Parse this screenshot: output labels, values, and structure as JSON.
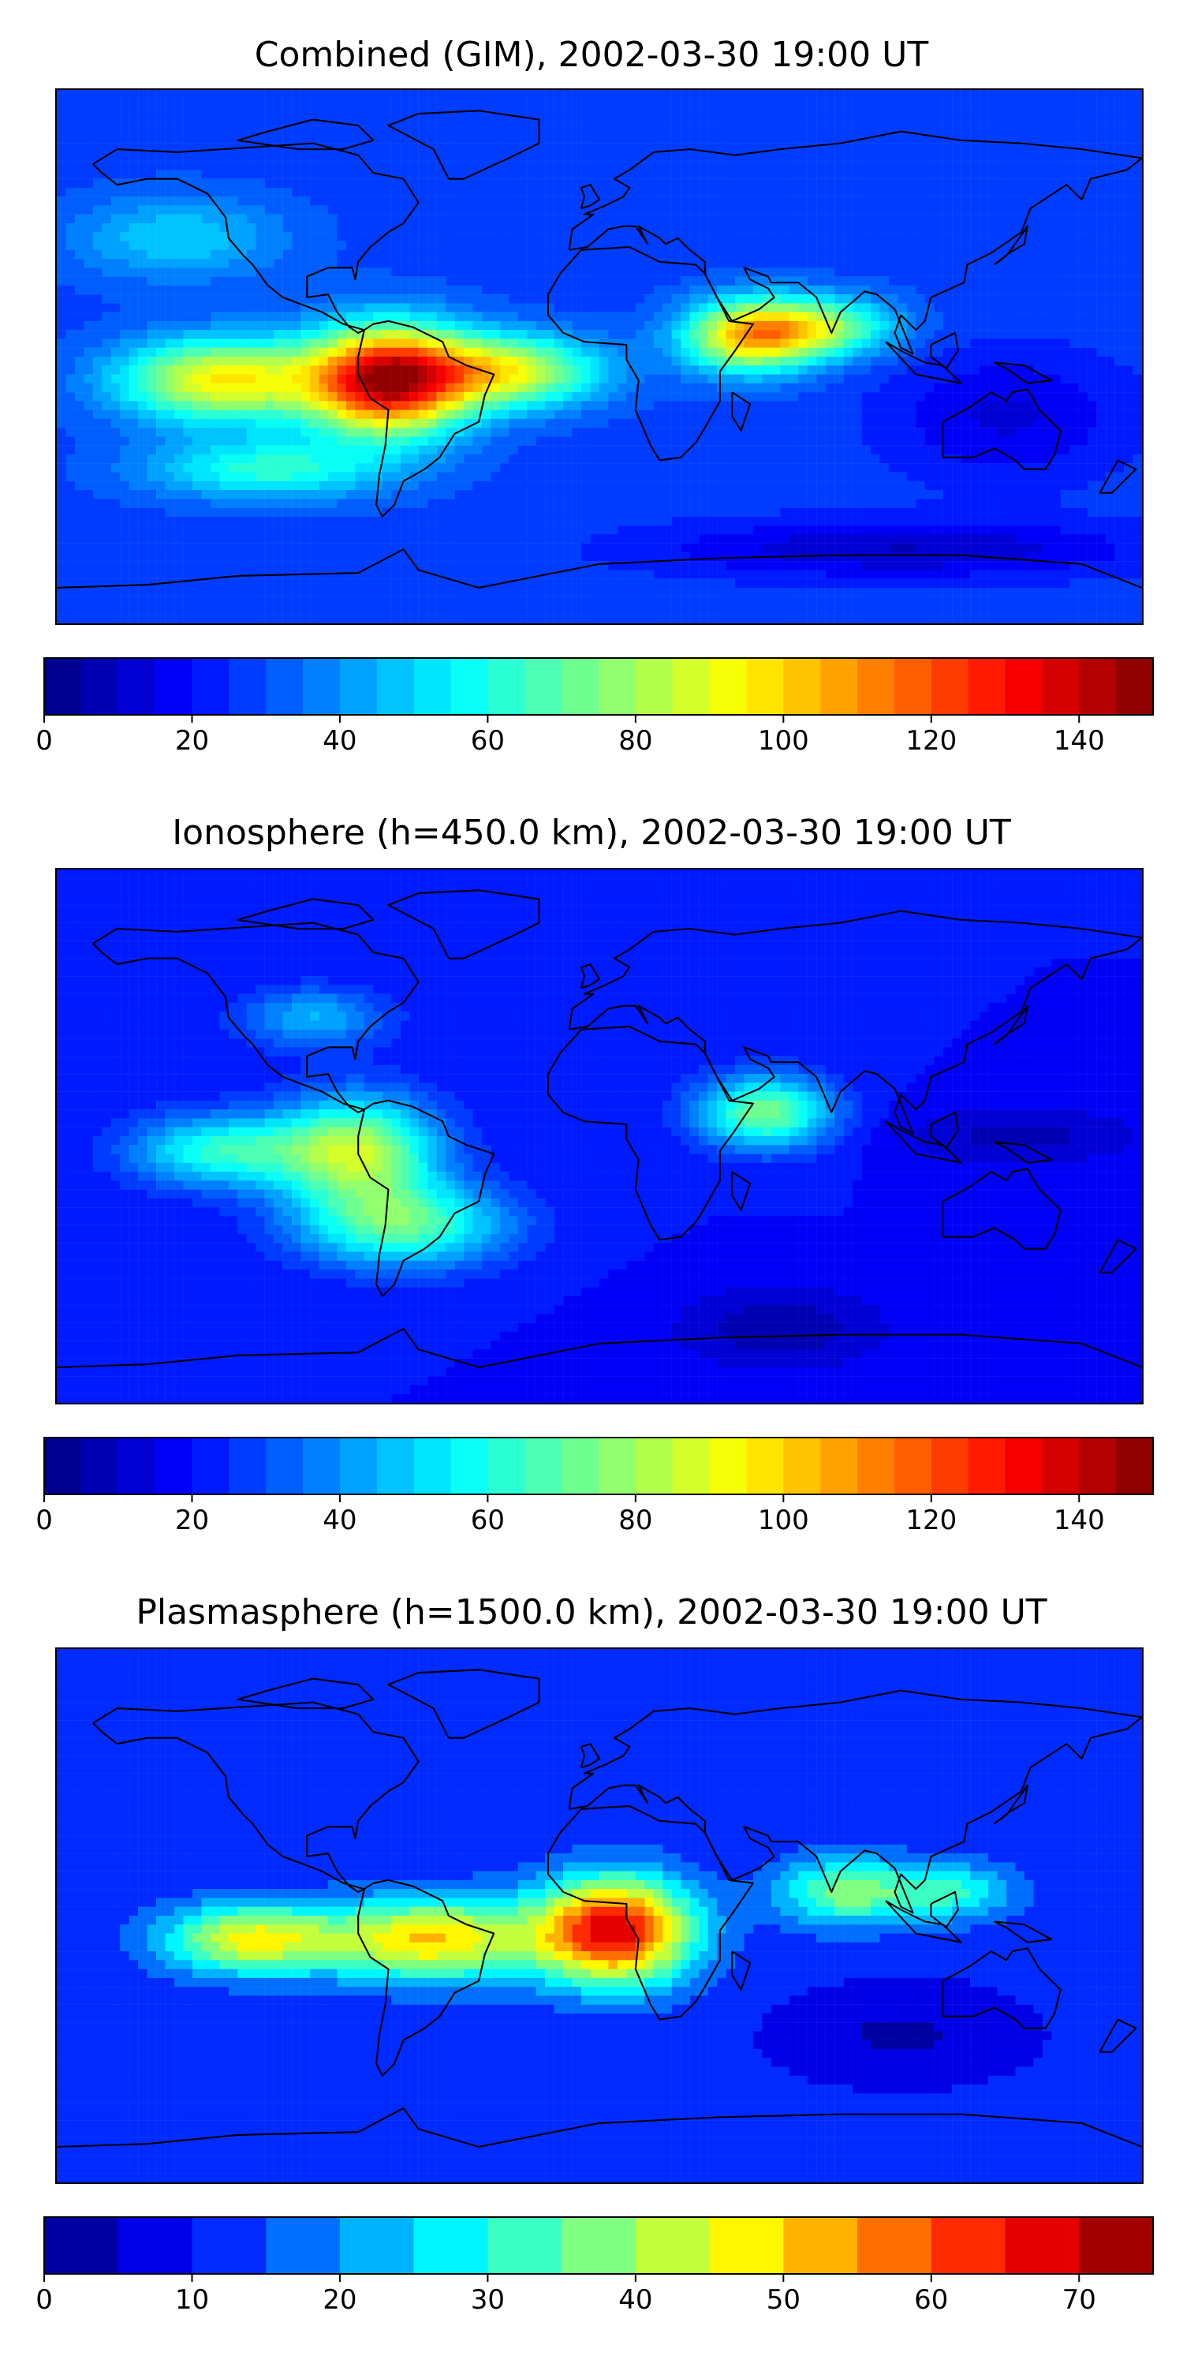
{
  "chart_data": [
    {
      "type": "heatmap",
      "title": "Combined (GIM), 2002-03-30 19:00 UT",
      "colormap": "jet",
      "colorbar": {
        "min": 0,
        "max": 150,
        "step": 5,
        "ticks": [
          0,
          20,
          40,
          60,
          80,
          100,
          120,
          140
        ],
        "tick_labels": [
          "0",
          "20",
          "40",
          "60",
          "80",
          "100",
          "120",
          "140"
        ]
      },
      "field": {
        "base": 28,
        "features": [
          {
            "region": "equatorial Americas maximum",
            "lon": -70,
            "lat": -8,
            "value": 140
          },
          {
            "region": "Pacific equatorial band",
            "lon": -125,
            "lat": -8,
            "value": 95
          },
          {
            "region": "tropical Atlantic",
            "lon": -30,
            "lat": -5,
            "value": 88
          },
          {
            "region": "Horn of Africa / Arabia",
            "lon": 50,
            "lat": 7,
            "value": 100
          },
          {
            "region": "South Asia tail",
            "lon": 75,
            "lat": 10,
            "value": 72
          },
          {
            "region": "southern Pacific band",
            "lon": -110,
            "lat": -38,
            "value": 62
          },
          {
            "region": "northeast Pacific",
            "lon": -140,
            "lat": 40,
            "value": 50
          },
          {
            "region": "Southeast Asia / Australia",
            "lon": 135,
            "lat": -20,
            "value": 14
          },
          {
            "region": "Antarctic rim",
            "lon": 100,
            "lat": -65,
            "value": 10
          }
        ]
      }
    },
    {
      "type": "heatmap",
      "title": "Ionosphere  (h=450.0 km), 2002-03-30 19:00 UT",
      "colormap": "jet",
      "colorbar": {
        "min": 0,
        "max": 150,
        "step": 5,
        "ticks": [
          0,
          20,
          40,
          60,
          80,
          100,
          120,
          140
        ],
        "tick_labels": [
          "0",
          "20",
          "40",
          "60",
          "80",
          "100",
          "120",
          "140"
        ]
      },
      "field": {
        "base": 20,
        "features": [
          {
            "region": "equatorial Americas",
            "lon": -80,
            "lat": -5,
            "value": 82
          },
          {
            "region": "southern Atlantic",
            "lon": -65,
            "lat": -30,
            "value": 68
          },
          {
            "region": "eastern Pacific",
            "lon": -125,
            "lat": -5,
            "value": 62
          },
          {
            "region": "Arabia / India",
            "lon": 55,
            "lat": 8,
            "value": 74
          },
          {
            "region": "North America",
            "lon": -95,
            "lat": 40,
            "value": 45
          },
          {
            "region": "western Pacific minimum",
            "lon": 140,
            "lat": 0,
            "value": 8
          },
          {
            "region": "Antarctic rim",
            "lon": 60,
            "lat": -65,
            "value": 6
          }
        ]
      }
    },
    {
      "type": "heatmap",
      "title": "Plasmasphere (h=1500.0 km), 2002-03-30 19:00 UT",
      "colormap": "jet",
      "colorbar": {
        "min": 0,
        "max": 75,
        "step": 5,
        "ticks": [
          0,
          10,
          20,
          30,
          40,
          50,
          60,
          70
        ],
        "tick_labels": [
          "0",
          "10",
          "20",
          "30",
          "40",
          "50",
          "60",
          "70"
        ]
      },
      "field": {
        "base": 11,
        "features": [
          {
            "region": "west Africa / Gulf of Guinea maximum",
            "lon": 5,
            "lat": -5,
            "value": 68
          },
          {
            "region": "northeast Brazil",
            "lon": -55,
            "lat": -8,
            "value": 50
          },
          {
            "region": "eastern Pacific",
            "lon": -115,
            "lat": -8,
            "value": 46
          },
          {
            "region": "Indian Ocean / South Asia",
            "lon": 80,
            "lat": 8,
            "value": 35
          },
          {
            "region": "Southeast Asia",
            "lon": 115,
            "lat": 8,
            "value": 31
          },
          {
            "region": "North America",
            "lon": -90,
            "lat": 45,
            "value": 14
          },
          {
            "region": "southern Indian Ocean / Australia",
            "lon": 100,
            "lat": -40,
            "value": 4
          }
        ]
      }
    }
  ],
  "colors": {
    "map_outline": "#000000",
    "coastline": "#000000",
    "background": "#ffffff"
  }
}
